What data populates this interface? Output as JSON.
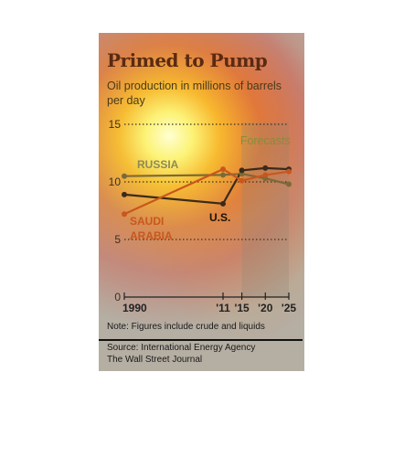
{
  "title": "Primed to Pump",
  "subtitle": "Oil production in millions of barrels per day",
  "note": "Note: Figures include crude and liquids",
  "source_line1": "Source: International Energy Agency",
  "source_line2": "The Wall Street Journal",
  "chart_data": {
    "type": "line",
    "ylim": [
      0,
      15
    ],
    "yticks": [
      0,
      5,
      10,
      15
    ],
    "xticks": [
      "1990",
      "'11",
      "'15",
      "'20",
      "'25"
    ],
    "xtick_values": [
      1990,
      2011,
      2015,
      2020,
      2025
    ],
    "xlim": [
      1990,
      2025
    ],
    "forecast_label": "Forecasts",
    "forecast_range": [
      2015,
      2025
    ],
    "series": [
      {
        "name": "RUSSIA",
        "color": "#7a6a3a",
        "x": [
          1990,
          2011,
          2015,
          2020,
          2025
        ],
        "y": [
          10.5,
          10.6,
          10.7,
          10.3,
          9.8
        ]
      },
      {
        "name": "U.S.",
        "color": "#3a2a1a",
        "x": [
          1990,
          2011,
          2015,
          2020,
          2025
        ],
        "y": [
          8.9,
          8.1,
          11.0,
          11.2,
          11.1
        ]
      },
      {
        "name": "SAUDI ARABIA",
        "color": "#c8571e",
        "x": [
          1990,
          2011,
          2015,
          2020,
          2025
        ],
        "y": [
          7.2,
          11.1,
          10.1,
          10.6,
          10.9
        ]
      }
    ],
    "series_labels": [
      {
        "text": "RUSSIA",
        "color": "#8f8a55"
      },
      {
        "text": "U.S.",
        "color": "#1a1208"
      },
      {
        "text": "SAUDI",
        "color": "#c8571e"
      },
      {
        "text": "ARABIA",
        "color": "#c8571e"
      }
    ]
  }
}
